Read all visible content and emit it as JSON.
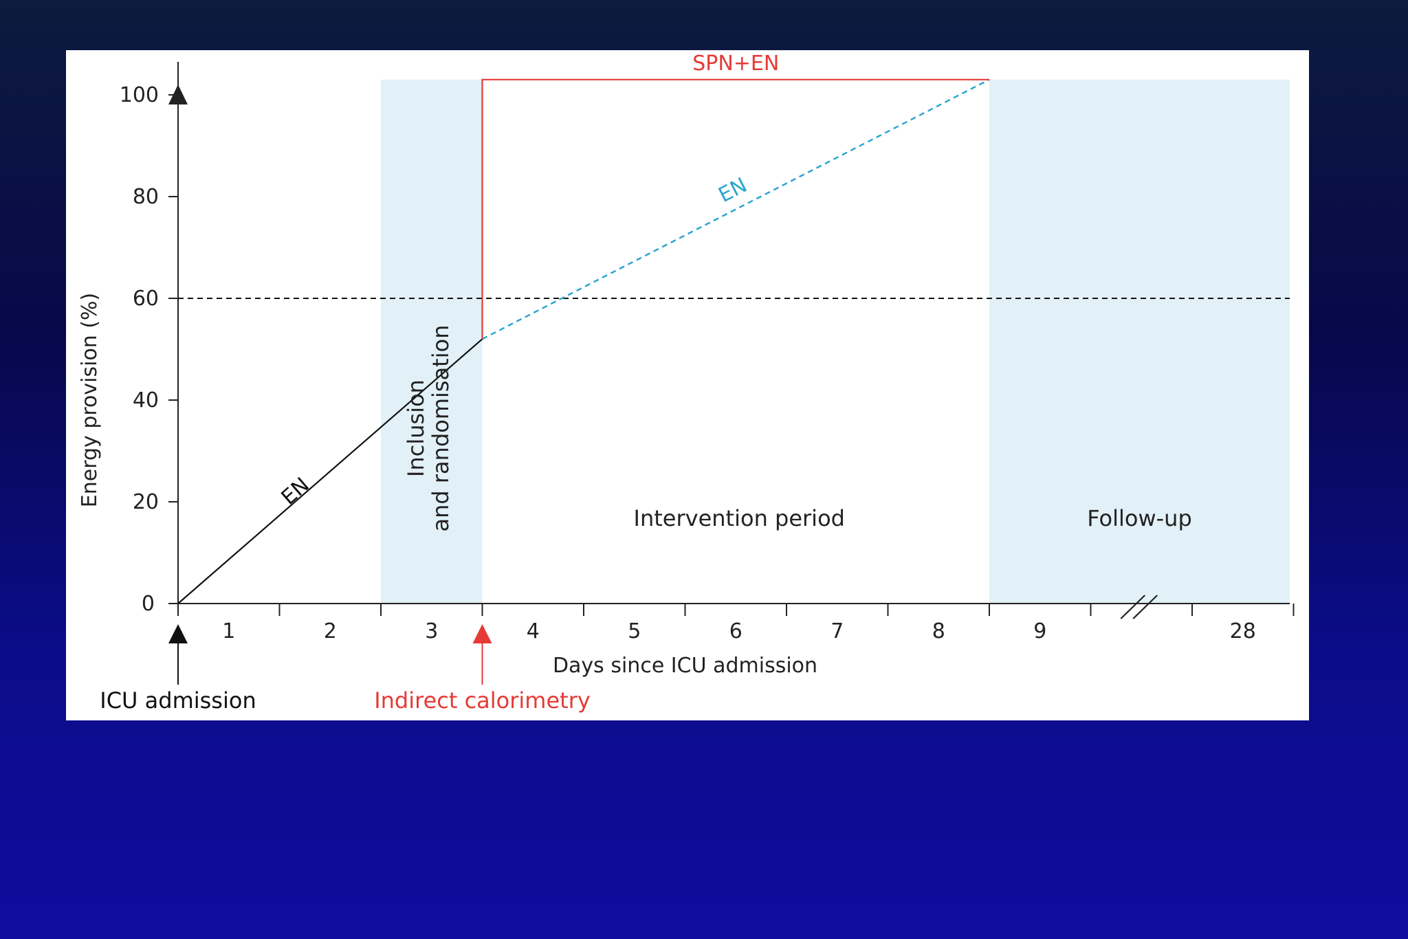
{
  "chart_data": {
    "type": "line",
    "ylabel": "Energy provision (%)",
    "xlabel": "Days since ICU admission",
    "ylim": [
      0,
      100
    ],
    "yticks": [
      0,
      20,
      40,
      60,
      80,
      100
    ],
    "x_categories": [
      "1",
      "2",
      "3",
      "4",
      "5",
      "6",
      "7",
      "8",
      "9",
      "28"
    ],
    "axis_break_after": "9",
    "grid": false,
    "reference_line": {
      "y": 60,
      "style": "dashed",
      "color": "#111111"
    },
    "regions": [
      {
        "label": "Inclusion and randomisation",
        "x_start": 2.5,
        "x_end": 3.5,
        "shaded": true,
        "color": "#e2f0f7",
        "label_vertical": true
      },
      {
        "label": "Intervention period",
        "x_start": 3.5,
        "x_end": 8.5,
        "shaded": false
      },
      {
        "label": "Follow-up",
        "x_start": 8.5,
        "x_end": 11.5,
        "shaded": true,
        "color": "#e2f0f7"
      }
    ],
    "series": [
      {
        "name": "EN",
        "color": "#111111",
        "style": "solid",
        "x": [
          0.5,
          3.5
        ],
        "y": [
          0,
          52
        ]
      },
      {
        "name": "EN",
        "color": "#2aa6cf",
        "style": "dashed",
        "x": [
          3.5,
          8.5
        ],
        "y": [
          52,
          103
        ]
      },
      {
        "name": "SPN+EN",
        "color": "#e53a35",
        "style": "solid",
        "x": [
          3.5,
          3.5,
          8.5
        ],
        "y": [
          52,
          103,
          103
        ]
      }
    ],
    "markers": [
      {
        "label": "ICU admission",
        "x": 0.5,
        "color": "#111111"
      },
      {
        "label": "Indirect calorimetry",
        "x": 3.5,
        "color": "#e53a35"
      }
    ],
    "top_arrow_y": 100
  }
}
